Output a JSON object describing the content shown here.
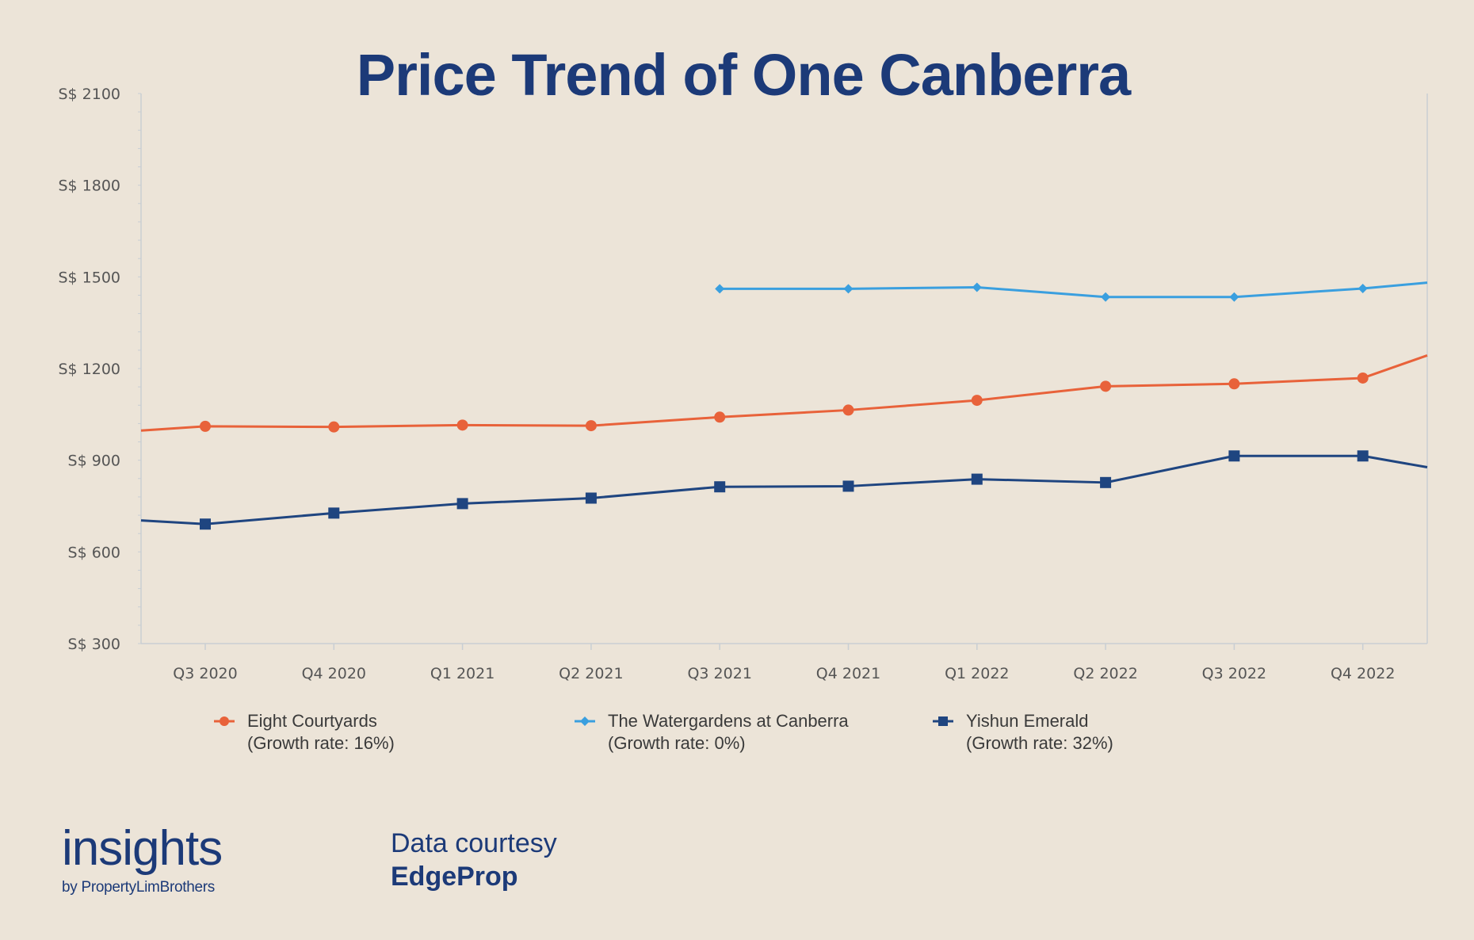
{
  "chart_data": {
    "type": "line",
    "title": "Price Trend of One Canberra",
    "categories": [
      "Q3 2020",
      "Q4 2020",
      "Q1 2021",
      "Q2 2021",
      "Q3 2021",
      "Q4 2021",
      "Q1 2022",
      "Q2 2022",
      "Q3 2022",
      "Q4 2022"
    ],
    "y_ticks": [
      "S$ 300",
      "S$ 600",
      "S$ 900",
      "S$ 1200",
      "S$ 1500",
      "S$ 1800",
      "S$ 2100"
    ],
    "ylim": [
      300,
      2100
    ],
    "grid": false,
    "legend_position": "bottom",
    "series": [
      {
        "name": "Eight Courtyards",
        "growth_label": "(Growth rate: 16%)",
        "color": "#e8623a",
        "marker": "circle",
        "values": [
          1011,
          1009,
          1015,
          1013,
          1041,
          1064,
          1096,
          1142,
          1150,
          1169
        ],
        "extends_left_to": 997,
        "extends_right_to": 1243
      },
      {
        "name": "The Watergardens at Canberra",
        "growth_label": "(Growth rate: 0%)",
        "color": "#3a9fdf",
        "marker": "diamond",
        "values": [
          null,
          null,
          null,
          null,
          1461,
          1461,
          1466,
          1434,
          1434,
          1462
        ],
        "extends_left_to": null,
        "extends_right_to": 1481
      },
      {
        "name": "Yishun Emerald",
        "growth_label": "(Growth rate: 32%)",
        "color": "#1f4580",
        "marker": "square",
        "values": [
          691,
          727,
          758,
          776,
          813,
          815,
          838,
          827,
          914,
          914
        ],
        "extends_left_to": 703,
        "extends_right_to": 877
      }
    ]
  },
  "branding": {
    "logo_main": "insights",
    "logo_sub": "by PropertyLimBrothers",
    "credit_line1": "Data courtesy",
    "credit_line2": "EdgeProp"
  },
  "colors": {
    "background": "#ece4d8",
    "title": "#1c3a78",
    "axis": "#c9ced3",
    "tick_text": "#555555"
  }
}
